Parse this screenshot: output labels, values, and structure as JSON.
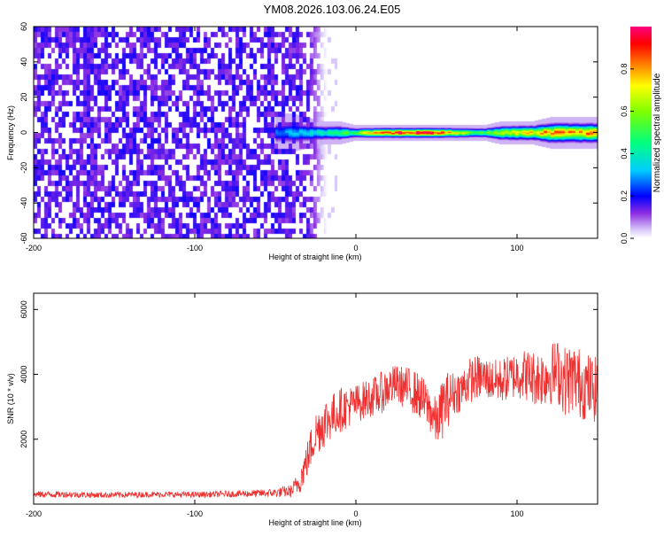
{
  "page_title": "YM08.2026.103.06.24.E05",
  "colors": {
    "snr_line": "#ee3030",
    "axis": "#000000",
    "background": "#ffffff"
  },
  "chart_data": [
    {
      "type": "heatmap",
      "title": "YM08.2026.103.06.24.E05",
      "xlabel": "Height of straight line (km)",
      "ylabel": "Frequency (Hz)",
      "xlim": [
        -200,
        150
      ],
      "ylim": [
        -60,
        60
      ],
      "xticks": [
        -200,
        -100,
        0,
        100
      ],
      "yticks": [
        -60,
        -40,
        -20,
        0,
        20,
        40,
        60
      ],
      "grid": false,
      "colorbar": {
        "label": "Normalized spectral amplitude",
        "range": [
          0.0,
          1.0
        ],
        "ticks": [
          0.0,
          0.2,
          0.4,
          0.6,
          0.8
        ],
        "tick_labels": [
          "0.0",
          "0.2",
          "0.4",
          "0.6",
          "0.8"
        ],
        "colormap": "rainbow"
      },
      "regions": [
        {
          "description": "broadband noise",
          "x": [
            -200,
            -18
          ],
          "freq": [
            -60,
            60
          ],
          "amplitude": 0.1
        },
        {
          "description": "signal ridge",
          "x": [
            -50,
            150
          ],
          "freq_center": 0,
          "amplitude_peak": 1.0
        }
      ],
      "ridge_profile": {
        "x": [
          -50,
          -40,
          -30,
          -20,
          -10,
          0,
          10,
          20,
          30,
          40,
          50,
          60,
          70,
          80,
          90,
          100,
          110,
          120,
          130,
          140,
          150
        ],
        "amplitude": [
          0.25,
          0.3,
          0.35,
          0.4,
          0.45,
          0.55,
          0.75,
          0.88,
          0.92,
          0.95,
          0.9,
          0.75,
          0.55,
          0.55,
          0.6,
          0.7,
          0.75,
          0.8,
          0.8,
          0.8,
          0.8
        ],
        "halfwidth_hz": [
          5,
          5,
          4,
          3,
          3,
          2,
          2,
          2,
          2,
          2,
          2,
          2,
          2,
          2,
          3,
          3,
          3,
          4,
          4,
          4,
          4
        ]
      }
    },
    {
      "type": "line",
      "xlabel": "Height of straight line (km)",
      "ylabel": "SNR (10 * v/v)",
      "xlim": [
        -200,
        150
      ],
      "ylim": [
        0,
        6500
      ],
      "xticks": [
        -200,
        -100,
        0,
        100
      ],
      "yticks": [
        2000,
        4000,
        6000
      ],
      "grid": false,
      "series": [
        {
          "x": [
            -200,
            -180,
            -160,
            -140,
            -120,
            -100,
            -80,
            -60,
            -50,
            -40,
            -35,
            -30,
            -25,
            -20,
            -15,
            -10,
            -5,
            0,
            5,
            10,
            15,
            20,
            25,
            30,
            35,
            40,
            45,
            50,
            55,
            60,
            65,
            70,
            75,
            80,
            85,
            90,
            95,
            100,
            105,
            110,
            115,
            120,
            125,
            130,
            135,
            140,
            145,
            150
          ],
          "values": [
            300,
            300,
            280,
            290,
            300,
            290,
            310,
            330,
            350,
            400,
            700,
            1400,
            2200,
            2500,
            2700,
            2900,
            3000,
            3100,
            3200,
            3300,
            3400,
            3600,
            3700,
            3600,
            3500,
            3300,
            3000,
            2500,
            3100,
            3400,
            3500,
            3800,
            3900,
            3900,
            3800,
            3800,
            3900,
            4000,
            4000,
            3900,
            3900,
            4000,
            4100,
            3800,
            3900,
            3700,
            3600,
            3500
          ],
          "noise": [
            100,
            100,
            90,
            90,
            90,
            90,
            100,
            120,
            140,
            200,
            400,
            600,
            700,
            800,
            700,
            700,
            650,
            600,
            600,
            600,
            650,
            650,
            600,
            650,
            700,
            700,
            700,
            750,
            1000,
            700,
            650,
            700,
            700,
            650,
            650,
            700,
            700,
            750,
            800,
            850,
            900,
            950,
            1000,
            1100,
            1100,
            1100,
            1050,
            1000
          ],
          "color": "#ee3030"
        }
      ]
    }
  ]
}
